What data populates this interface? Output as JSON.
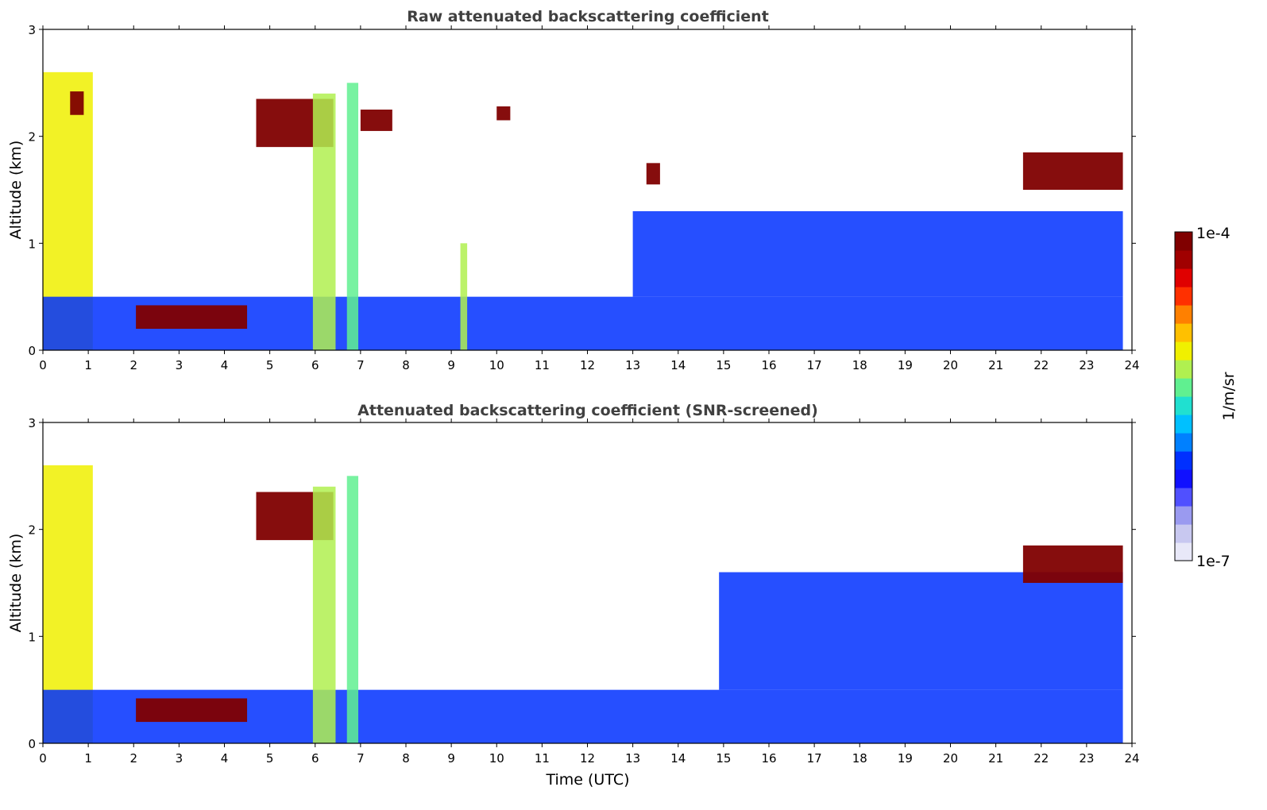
{
  "chart_data": [
    {
      "type": "heatmap",
      "title": "Raw attenuated backscattering coefficient",
      "xlabel": "",
      "ylabel": "Altitude (km)",
      "xlim": [
        0,
        24
      ],
      "ylim": [
        0,
        3
      ],
      "xticks": [
        "0",
        "1",
        "2",
        "3",
        "4",
        "5",
        "6",
        "7",
        "8",
        "9",
        "10",
        "11",
        "12",
        "13",
        "14",
        "15",
        "16",
        "17",
        "18",
        "19",
        "20",
        "21",
        "22",
        "23",
        "24"
      ],
      "yticks": [
        "0",
        "1",
        "2",
        "3"
      ],
      "data_end_hour": 23.8,
      "features": [
        {
          "label": "thick layer near surface",
          "start": 0.0,
          "end": 1.1,
          "bottom": 0.0,
          "top": 2.6,
          "level": 0.62
        },
        {
          "label": "boundary layer",
          "start": 0.0,
          "end": 23.8,
          "bottom": 0.0,
          "top": 0.5,
          "level": 0.32
        },
        {
          "label": "aerosol layer",
          "start": 13.0,
          "end": 23.8,
          "bottom": 0.5,
          "top": 1.3,
          "level": 0.28
        },
        {
          "label": "low cloud",
          "start": 2.05,
          "end": 4.5,
          "bottom": 0.2,
          "top": 0.42,
          "level": 1.0
        },
        {
          "label": "cloud",
          "start": 0.6,
          "end": 0.9,
          "bottom": 2.2,
          "top": 2.42,
          "level": 1.0
        },
        {
          "label": "cloud",
          "start": 4.7,
          "end": 6.4,
          "bottom": 1.9,
          "top": 2.35,
          "level": 1.0
        },
        {
          "label": "cloud",
          "start": 7.0,
          "end": 7.7,
          "bottom": 2.05,
          "top": 2.25,
          "level": 1.0
        },
        {
          "label": "cloud",
          "start": 10.0,
          "end": 10.3,
          "bottom": 2.15,
          "top": 2.28,
          "level": 1.0
        },
        {
          "label": "cloud",
          "start": 13.3,
          "end": 13.6,
          "bottom": 1.55,
          "top": 1.75,
          "level": 1.0
        },
        {
          "label": "cloud",
          "start": 21.6,
          "end": 23.8,
          "bottom": 1.5,
          "top": 1.85,
          "level": 1.0
        },
        {
          "label": "precipitation shaft",
          "start": 5.95,
          "end": 6.45,
          "bottom": 0.0,
          "top": 2.4,
          "level": 0.6
        },
        {
          "label": "precipitation shaft",
          "start": 6.7,
          "end": 6.95,
          "bottom": 0.0,
          "top": 2.5,
          "level": 0.55
        },
        {
          "label": "precipitation shaft",
          "start": 9.2,
          "end": 9.35,
          "bottom": 0.0,
          "top": 1.0,
          "level": 0.6
        }
      ]
    },
    {
      "type": "heatmap",
      "title": "Attenuated backscattering coefficient (SNR-screened)",
      "xlabel": "Time (UTC)",
      "ylabel": "Altitude (km)",
      "xlim": [
        0,
        24
      ],
      "ylim": [
        0,
        3
      ],
      "xticks": [
        "0",
        "1",
        "2",
        "3",
        "4",
        "5",
        "6",
        "7",
        "8",
        "9",
        "10",
        "11",
        "12",
        "13",
        "14",
        "15",
        "16",
        "17",
        "18",
        "19",
        "20",
        "21",
        "22",
        "23",
        "24"
      ],
      "yticks": [
        "0",
        "1",
        "2",
        "3"
      ],
      "data_end_hour": 23.8,
      "features": [
        {
          "label": "thick layer near surface",
          "start": 0.0,
          "end": 1.1,
          "bottom": 0.0,
          "top": 2.6,
          "level": 0.62
        },
        {
          "label": "boundary layer",
          "start": 0.0,
          "end": 23.8,
          "bottom": 0.0,
          "top": 0.5,
          "level": 0.32
        },
        {
          "label": "aerosol layer",
          "start": 14.9,
          "end": 23.8,
          "bottom": 0.5,
          "top": 1.6,
          "level": 0.28
        },
        {
          "label": "low cloud",
          "start": 2.05,
          "end": 4.5,
          "bottom": 0.2,
          "top": 0.42,
          "level": 1.0
        },
        {
          "label": "cloud",
          "start": 4.7,
          "end": 6.4,
          "bottom": 1.9,
          "top": 2.35,
          "level": 1.0
        },
        {
          "label": "cloud",
          "start": 21.6,
          "end": 23.8,
          "bottom": 1.5,
          "top": 1.85,
          "level": 1.0
        },
        {
          "label": "precipitation shaft",
          "start": 5.95,
          "end": 6.45,
          "bottom": 0.0,
          "top": 2.4,
          "level": 0.6
        },
        {
          "label": "precipitation shaft",
          "start": 6.7,
          "end": 6.95,
          "bottom": 0.0,
          "top": 2.5,
          "level": 0.55
        }
      ]
    }
  ],
  "colorbar": {
    "label": "1/m/sr",
    "max_label": "1e-4",
    "min_label": "1e-7",
    "colors": [
      "#e8e8f8",
      "#c8c8f0",
      "#9a9af0",
      "#5050ff",
      "#1010ff",
      "#0030ff",
      "#0080ff",
      "#00c0ff",
      "#20e0d0",
      "#60f090",
      "#b0f050",
      "#f0f000",
      "#ffc000",
      "#ff8000",
      "#ff3000",
      "#e00000",
      "#a00000",
      "#800000"
    ]
  }
}
